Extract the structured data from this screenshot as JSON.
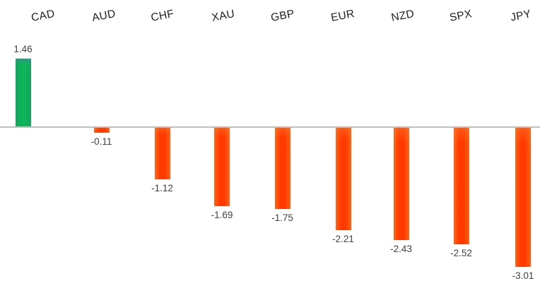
{
  "chart_data": {
    "type": "bar",
    "title": "",
    "xlabel": "",
    "ylabel": "",
    "grid": false,
    "legend": "none",
    "baseline": 0,
    "ylim": [
      -3.5,
      2.0
    ],
    "categories": [
      "CAD",
      "AUD",
      "CHF",
      "XAU",
      "GBP",
      "EUR",
      "NZD",
      "SPX",
      "JPY"
    ],
    "values": [
      1.46,
      -0.11,
      -1.12,
      -1.69,
      -1.75,
      -2.21,
      -2.43,
      -2.52,
      -3.01
    ],
    "data_labels": [
      "1.46",
      "-0.11",
      "-1.12",
      "-1.69",
      "-1.75",
      "-2.21",
      "-2.43",
      "-2.52",
      "-3.01"
    ],
    "colors": {
      "positive_bar": "#0CB557",
      "negative_bar": "#FF3A00",
      "baseline_line": "#BFBFBF",
      "value_label_text": "#404040",
      "category_label_text": "#1F1F1F",
      "background": "#FFFFFF"
    }
  }
}
